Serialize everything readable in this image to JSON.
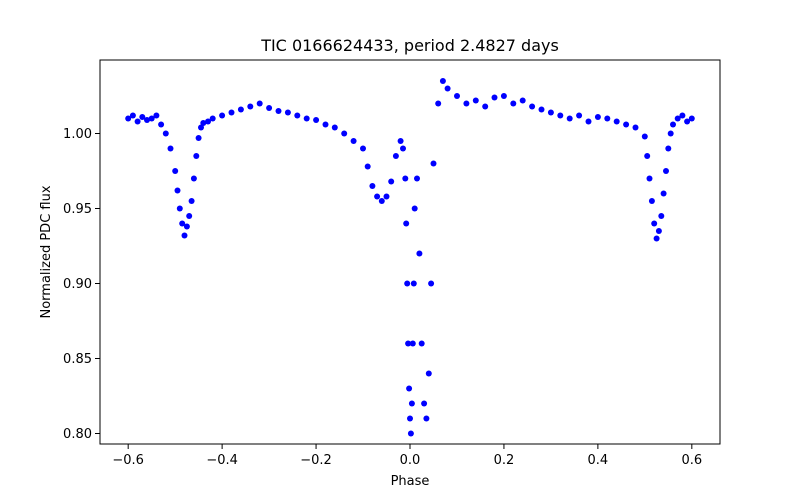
{
  "chart_data": {
    "type": "scatter",
    "title": "TIC 0166624433, period 2.4827 days",
    "xlabel": "Phase",
    "ylabel": "Normalized PDC flux",
    "xlim": [
      -0.66,
      0.66
    ],
    "ylim": [
      0.793,
      1.049
    ],
    "xticks": [
      -0.6,
      -0.4,
      -0.2,
      0.0,
      0.2,
      0.4,
      0.6
    ],
    "xtick_labels": [
      "−0.6",
      "−0.4",
      "−0.2",
      "0.0",
      "0.2",
      "0.4",
      "0.6"
    ],
    "yticks": [
      0.8,
      0.85,
      0.9,
      0.95,
      1.0
    ],
    "ytick_labels": [
      "0.80",
      "0.85",
      "0.90",
      "0.95",
      "1.00"
    ],
    "grid": false,
    "marker_color": "#0000ff",
    "series": [
      {
        "x": [
          -0.6,
          -0.59,
          -0.58,
          -0.57,
          -0.56,
          -0.55,
          -0.54,
          -0.53,
          -0.52,
          -0.51,
          -0.5,
          -0.495,
          -0.49,
          -0.485,
          -0.48,
          -0.475,
          -0.47,
          -0.465,
          -0.46,
          -0.455,
          -0.45,
          -0.445,
          -0.44,
          -0.43,
          -0.42,
          -0.4,
          -0.38,
          -0.36,
          -0.34,
          -0.32,
          -0.3,
          -0.28,
          -0.26,
          -0.24,
          -0.22,
          -0.2,
          -0.18,
          -0.16,
          -0.14,
          -0.12,
          -0.1,
          -0.09,
          -0.08,
          -0.07,
          -0.06,
          -0.05,
          -0.04,
          -0.03,
          -0.02,
          -0.015,
          -0.01,
          -0.008,
          -0.006,
          -0.004,
          -0.002,
          0.0,
          0.002,
          0.004,
          0.006,
          0.008,
          0.01,
          0.015,
          0.02,
          0.025,
          0.03,
          0.035,
          0.04,
          0.045,
          0.05,
          0.06,
          0.07,
          0.08,
          0.1,
          0.12,
          0.14,
          0.16,
          0.18,
          0.2,
          0.22,
          0.24,
          0.26,
          0.28,
          0.3,
          0.32,
          0.34,
          0.36,
          0.38,
          0.4,
          0.42,
          0.44,
          0.46,
          0.48,
          0.5,
          0.505,
          0.51,
          0.515,
          0.52,
          0.525,
          0.53,
          0.535,
          0.54,
          0.545,
          0.55,
          0.555,
          0.56,
          0.57,
          0.58,
          0.59,
          0.6
        ],
        "y": [
          1.01,
          1.012,
          1.008,
          1.011,
          1.009,
          1.01,
          1.012,
          1.006,
          1.0,
          0.99,
          0.975,
          0.962,
          0.95,
          0.94,
          0.932,
          0.938,
          0.945,
          0.955,
          0.97,
          0.985,
          0.997,
          1.004,
          1.007,
          1.008,
          1.01,
          1.012,
          1.014,
          1.016,
          1.018,
          1.02,
          1.017,
          1.015,
          1.014,
          1.012,
          1.01,
          1.009,
          1.006,
          1.004,
          1.0,
          0.995,
          0.99,
          0.978,
          0.965,
          0.958,
          0.955,
          0.958,
          0.968,
          0.985,
          0.995,
          0.99,
          0.97,
          0.94,
          0.9,
          0.86,
          0.83,
          0.81,
          0.8,
          0.82,
          0.86,
          0.9,
          0.95,
          0.97,
          0.92,
          0.86,
          0.82,
          0.81,
          0.84,
          0.9,
          0.98,
          1.02,
          1.035,
          1.03,
          1.025,
          1.02,
          1.022,
          1.018,
          1.024,
          1.025,
          1.02,
          1.022,
          1.018,
          1.016,
          1.014,
          1.012,
          1.01,
          1.012,
          1.008,
          1.011,
          1.01,
          1.008,
          1.006,
          1.004,
          0.998,
          0.985,
          0.97,
          0.955,
          0.94,
          0.93,
          0.935,
          0.945,
          0.96,
          0.975,
          0.99,
          1.0,
          1.006,
          1.01,
          1.012,
          1.008,
          1.01
        ]
      }
    ]
  }
}
